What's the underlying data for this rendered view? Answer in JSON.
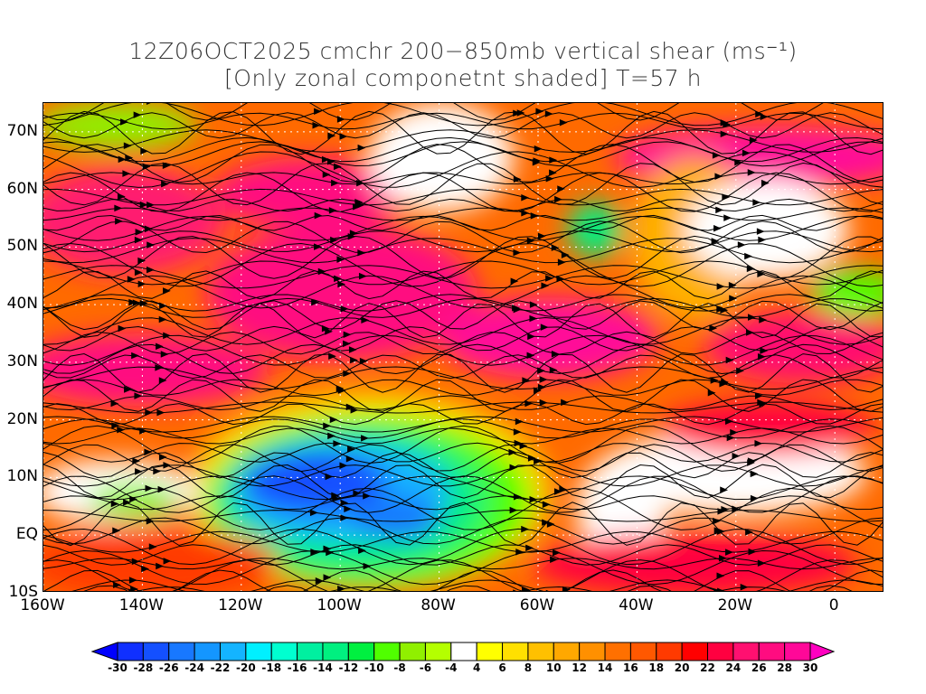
{
  "title": {
    "line1": "12Z06OCT2025 cmchr 200−850mb vertical shear (ms⁻¹)",
    "line2": "[Only zonal componetnt shaded] T=57 h"
  },
  "axes": {
    "x_labels": [
      {
        "lon": -160,
        "label": "160W"
      },
      {
        "lon": -140,
        "label": "140W"
      },
      {
        "lon": -120,
        "label": "120W"
      },
      {
        "lon": -100,
        "label": "100W"
      },
      {
        "lon": -80,
        "label": "80W"
      },
      {
        "lon": -60,
        "label": "60W"
      },
      {
        "lon": -40,
        "label": "40W"
      },
      {
        "lon": -20,
        "label": "20W"
      },
      {
        "lon": 0,
        "label": "0"
      }
    ],
    "y_labels": [
      {
        "lat": 70,
        "label": "70N"
      },
      {
        "lat": 60,
        "label": "60N"
      },
      {
        "lat": 50,
        "label": "50N"
      },
      {
        "lat": 40,
        "label": "40N"
      },
      {
        "lat": 30,
        "label": "30N"
      },
      {
        "lat": 20,
        "label": "20N"
      },
      {
        "lat": 10,
        "label": "10N"
      },
      {
        "lat": 0,
        "label": "EQ"
      },
      {
        "lat": -10,
        "label": "10S"
      }
    ]
  },
  "colorbar": {
    "labels": [
      "-30",
      "-28",
      "-26",
      "-24",
      "-22",
      "-20",
      "-18",
      "-16",
      "-14",
      "-12",
      "-10",
      "-8",
      "-6",
      "-4",
      "4",
      "6",
      "8",
      "10",
      "12",
      "14",
      "16",
      "18",
      "20",
      "22",
      "24",
      "26",
      "28",
      "30"
    ],
    "colors": [
      "#1030ff",
      "#1450ff",
      "#1878ff",
      "#1496ff",
      "#14b4ff",
      "#00f0ff",
      "#00ffd0",
      "#00f0a0",
      "#00f080",
      "#00f040",
      "#50ff00",
      "#90f000",
      "#b4ff00",
      "#ffffff",
      "#ffff00",
      "#ffe000",
      "#ffc000",
      "#ffa800",
      "#ff9000",
      "#ff7000",
      "#ff5800",
      "#ff3a00",
      "#ff0000",
      "#ff0040",
      "#ff1070",
      "#ff0c80",
      "#ff0898"
    ],
    "under_color": "#0000ff",
    "over_color": "#ff00c0"
  }
}
